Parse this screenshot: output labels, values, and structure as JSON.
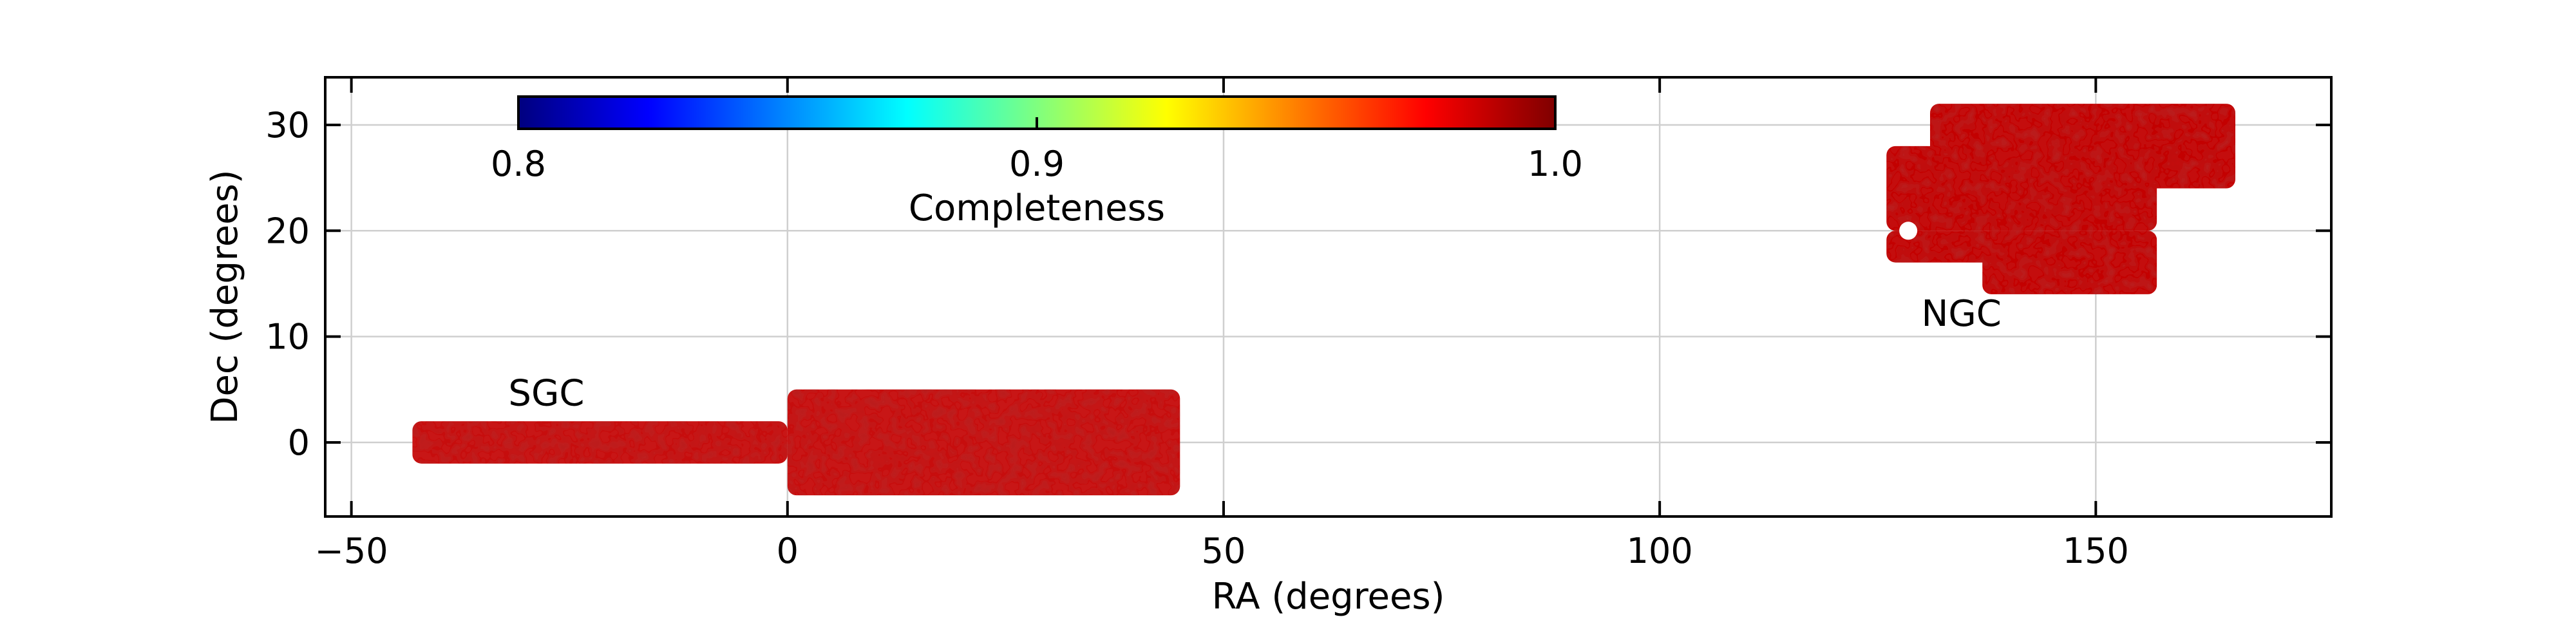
{
  "chart_data": {
    "type": "heatmap",
    "title": "",
    "xlabel": "RA (degrees)",
    "ylabel": "Dec (degrees)",
    "xlim": [
      -53,
      177
    ],
    "ylim": [
      -7,
      34.5
    ],
    "xticks": [
      -50,
      0,
      50,
      100,
      150
    ],
    "xtick_labels": [
      "−50",
      "0",
      "50",
      "100",
      "150"
    ],
    "yticks": [
      0,
      10,
      20,
      30
    ],
    "ytick_labels": [
      "0",
      "10",
      "20",
      "30"
    ],
    "grid": true,
    "regions": [
      {
        "label": "SGC",
        "label_pos": [
          -32,
          3.5
        ],
        "color": "#c81212",
        "rects": [
          {
            "ra": [
              -43,
              0
            ],
            "dec": [
              -2,
              2
            ]
          },
          {
            "ra": [
              0,
              45
            ],
            "dec": [
              -5,
              5
            ]
          }
        ]
      },
      {
        "label": "NGC",
        "label_pos": [
          130,
          11
        ],
        "color": "#c41010",
        "rects": [
          {
            "ra": [
              131,
              166
            ],
            "dec": [
              24,
              32
            ]
          },
          {
            "ra": [
              126,
              157
            ],
            "dec": [
              20,
              28
            ]
          },
          {
            "ra": [
              126,
              143
            ],
            "dec": [
              17,
              20
            ]
          },
          {
            "ra": [
              137,
              157
            ],
            "dec": [
              14,
              20
            ]
          }
        ]
      }
    ],
    "colorbar": {
      "label": "Completeness",
      "range": [
        0.8,
        1.0
      ],
      "ticks": [
        0.8,
        0.9,
        1.0
      ],
      "tick_labels": [
        "0.8",
        "0.9",
        "1.0"
      ],
      "colormap": [
        "#00007f",
        "#0000ff",
        "#007fff",
        "#00ffff",
        "#7fff7f",
        "#ffff00",
        "#ff7f00",
        "#ff0000",
        "#7f0000"
      ],
      "placement": "top-left inside axes"
    }
  }
}
